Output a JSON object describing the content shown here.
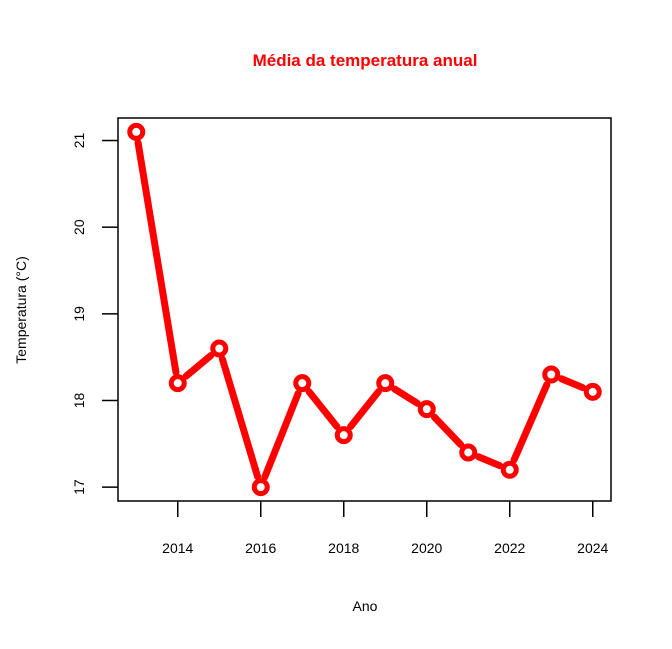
{
  "chart_data": {
    "type": "line",
    "title": "Média da temperatura anual",
    "xlabel": "Ano",
    "ylabel": "Temperatura (°C)",
    "x": [
      2013,
      2014,
      2015,
      2016,
      2017,
      2018,
      2019,
      2020,
      2021,
      2022,
      2023,
      2024
    ],
    "series": [
      {
        "values": [
          21.1,
          18.2,
          18.6,
          17.0,
          18.2,
          17.6,
          18.2,
          17.9,
          17.4,
          17.2,
          18.3,
          18.1
        ]
      }
    ],
    "x_ticks": [
      "2014",
      "2016",
      "2018",
      "2020",
      "2022",
      "2024"
    ],
    "y_ticks": [
      "17",
      "18",
      "19",
      "20",
      "21"
    ],
    "xlim": [
      2012.56,
      2024.44
    ],
    "ylim": [
      16.84,
      21.26
    ],
    "grid": false,
    "colors": {
      "line": "#ff0000",
      "title": "#ff0000",
      "axis": "#000000",
      "point_center": "#ffffff"
    }
  }
}
